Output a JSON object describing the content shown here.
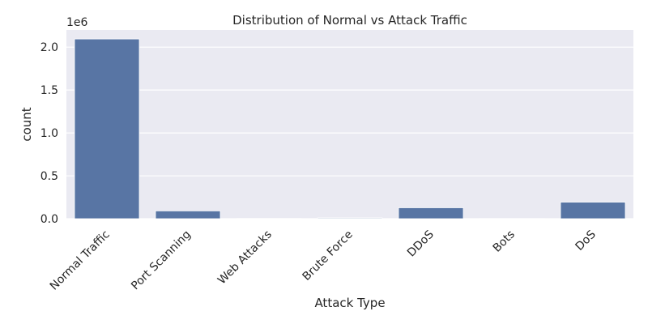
{
  "chart_data": {
    "type": "bar",
    "title": "Distribution of Normal vs Attack Traffic",
    "xlabel": "Attack Type",
    "ylabel": "count",
    "y_offset_label": "1e6",
    "y_scale": 1000000,
    "categories": [
      "Normal Traffic",
      "Port Scanning",
      "Web Attacks",
      "Brute Force",
      "DDoS",
      "Bots",
      "DoS"
    ],
    "values": [
      2095000,
      91000,
      2100,
      9100,
      128000,
      1950,
      193000
    ],
    "ylim": [
      0,
      2200000
    ],
    "yticks": [
      0,
      500000,
      1000000,
      1500000,
      2000000
    ],
    "ytick_labels": [
      "0.0",
      "0.5",
      "1.0",
      "1.5",
      "2.0"
    ],
    "grid": true,
    "bar_color": "#5875a4",
    "background_color": "#eaeaf2",
    "grid_color": "#ffffff"
  }
}
